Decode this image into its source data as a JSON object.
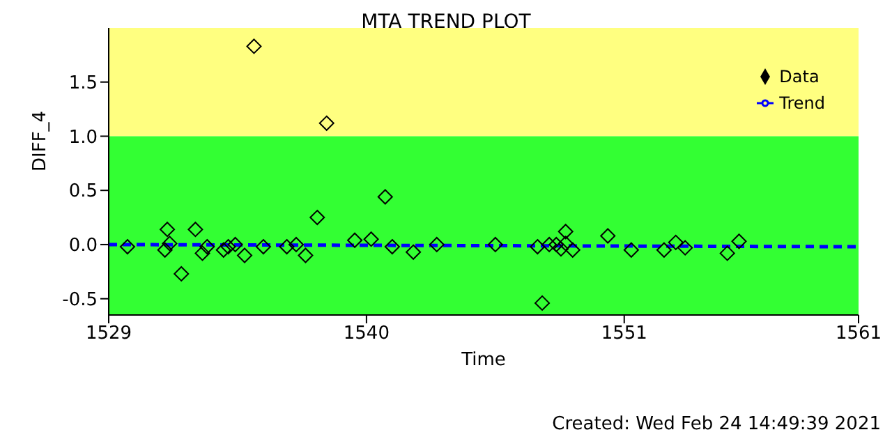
{
  "chart_data": {
    "type": "scatter",
    "title": "MTA TREND PLOT",
    "xlabel": "Time",
    "ylabel": "DIFF_4",
    "annotations": [
      "Created: Wed Feb 24 14:49:39 2021"
    ],
    "xlim": [
      1529,
      1561
    ],
    "xticks": [
      1529,
      1540,
      1551,
      1561
    ],
    "ylim": [
      -0.65,
      2.0
    ],
    "yticks": [
      -0.5,
      {
        "value": 0,
        "label": "0.0"
      },
      0.5,
      {
        "value": 1,
        "label": "1.0"
      },
      1.5
    ],
    "grid": false,
    "legend": "top right",
    "bands": [
      {
        "axis": "y",
        "from": 1.0,
        "to": 2.0,
        "color": "#ffff80"
      },
      {
        "axis": "y",
        "from": -0.65,
        "to": 1.0,
        "color": "#33ff33"
      }
    ],
    "series": [
      {
        "name": "Data",
        "color": "#000000",
        "marker": "diamond",
        "x": [
          1529.8,
          1531.4,
          1531.5,
          1531.6,
          1532.1,
          1532.7,
          1533.0,
          1533.2,
          1533.9,
          1534.1,
          1534.4,
          1534.8,
          1535.2,
          1535.6,
          1536.6,
          1537.0,
          1537.4,
          1537.9,
          1538.3,
          1539.5,
          1540.2,
          1540.8,
          1541.1,
          1542.0,
          1543.0,
          1545.5,
          1547.3,
          1547.5,
          1547.8,
          1548.1,
          1548.3,
          1548.5,
          1548.5,
          1548.8,
          1550.3,
          1551.3,
          1552.7,
          1553.2,
          1553.6,
          1555.4,
          1555.9
        ],
        "values": [
          -0.02,
          -0.05,
          0.14,
          0.01,
          -0.27,
          0.14,
          -0.08,
          -0.02,
          -0.05,
          -0.02,
          0.0,
          -0.1,
          1.83,
          -0.02,
          -0.02,
          0.0,
          -0.1,
          0.25,
          1.12,
          0.04,
          0.05,
          0.44,
          -0.02,
          -0.07,
          0.0,
          0.0,
          -0.02,
          -0.54,
          0.0,
          0.0,
          -0.04,
          0.12,
          0.01,
          -0.05,
          0.08,
          -0.05,
          -0.05,
          0.02,
          -0.03,
          -0.08,
          0.03
        ]
      },
      {
        "name": "Trend",
        "type": "line",
        "color": "#0000ff",
        "line_style": "dashed",
        "marker": "none",
        "x": [
          1529,
          1561
        ],
        "values": [
          0.0,
          -0.02
        ]
      }
    ]
  }
}
